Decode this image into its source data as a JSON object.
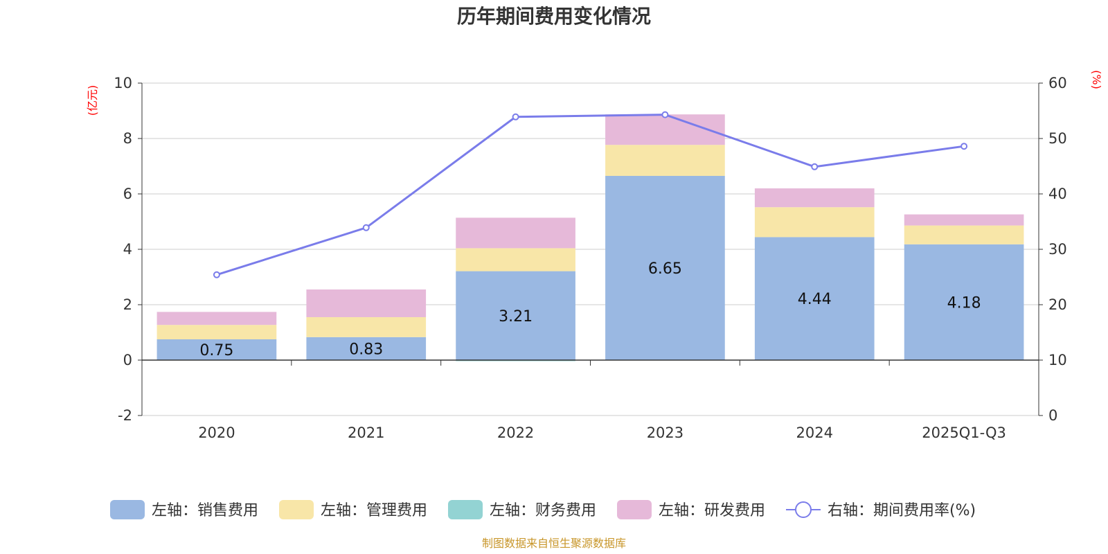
{
  "chart_data": {
    "type": "bar",
    "title": "历年期间费用变化情况",
    "categories": [
      "2020",
      "2021",
      "2022",
      "2023",
      "2024",
      "2025Q1-Q3"
    ],
    "left_axis": {
      "unit_label": "(亿元)",
      "ylim": [
        -2,
        10
      ],
      "ticks": [
        -2,
        0,
        2,
        4,
        6,
        8,
        10
      ]
    },
    "right_axis": {
      "unit_label": "(%)",
      "ylim": [
        0,
        60
      ],
      "ticks": [
        0,
        10,
        20,
        30,
        40,
        50,
        60
      ]
    },
    "series": [
      {
        "name": "左轴：销售费用",
        "type": "bar",
        "stack": "left",
        "color": "#9ab8e2",
        "values": [
          0.75,
          0.83,
          3.21,
          6.65,
          4.44,
          4.18
        ],
        "labels": [
          "0.75",
          "0.83",
          "3.21",
          "6.65",
          "4.44",
          "4.18"
        ]
      },
      {
        "name": "左轴：管理费用",
        "type": "bar",
        "stack": "left",
        "color": "#f8e6a8",
        "values": [
          0.52,
          0.72,
          0.83,
          1.12,
          1.08,
          0.68
        ]
      },
      {
        "name": "左轴：财务费用",
        "type": "bar",
        "stack": "left",
        "color": "#93d3d3",
        "values": [
          0.0,
          0.0,
          -0.03,
          0.0,
          0.0,
          0.0
        ]
      },
      {
        "name": "左轴：研发费用",
        "type": "bar",
        "stack": "left",
        "color": "#e6b9d9",
        "values": [
          0.47,
          1.0,
          1.1,
          1.1,
          0.68,
          0.4
        ]
      },
      {
        "name": "右轴：期间费用率(%)",
        "type": "line",
        "axis": "right",
        "color": "#7a7cea",
        "values": [
          25.4,
          33.9,
          53.9,
          54.3,
          44.9,
          48.6
        ]
      }
    ]
  },
  "footer": {
    "source": "制图数据来自恒生聚源数据库"
  }
}
